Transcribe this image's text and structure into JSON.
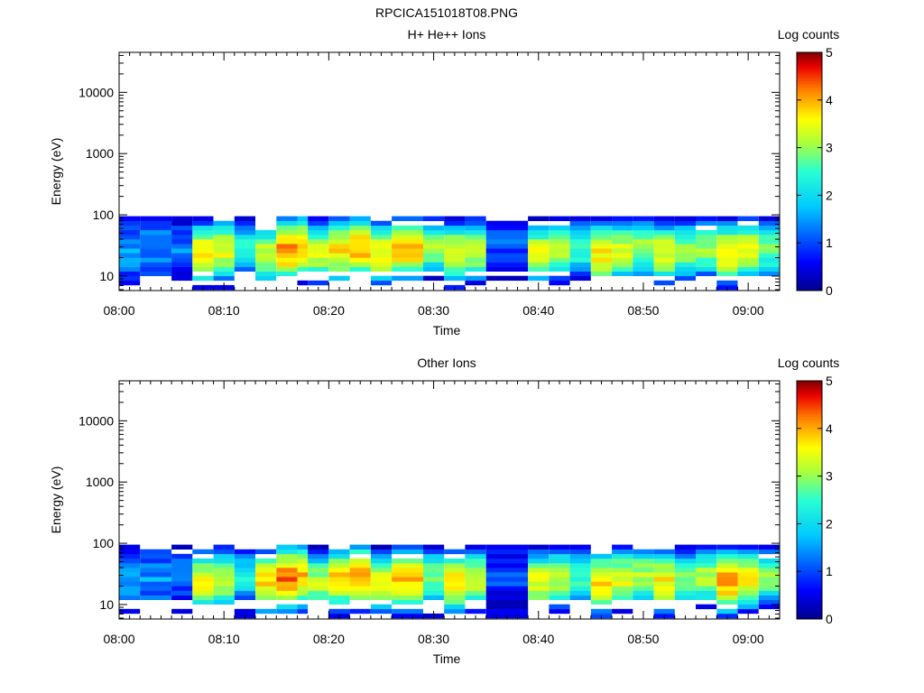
{
  "figure": {
    "title": "RPCICA151018T08.PNG"
  },
  "chart_data": [
    {
      "type": "heatmap",
      "title": "H+ He++ Ions",
      "xlabel": "Time",
      "ylabel": "Energy (eV)",
      "x_range": [
        "08:00",
        "09:03"
      ],
      "x_ticks": [
        "08:00",
        "08:10",
        "08:20",
        "08:30",
        "08:40",
        "08:50",
        "09:00"
      ],
      "y_scale": "log",
      "y_range": [
        5.8,
        45000
      ],
      "y_ticks": [
        "10",
        "100",
        "1000",
        "10000"
      ],
      "colorbar": {
        "label": "Log counts",
        "range": [
          0,
          5
        ],
        "ticks": [
          "0",
          "1",
          "2",
          "3",
          "4",
          "5"
        ],
        "colormap": "rainbow"
      },
      "data_energy_range_ev": [
        6,
        95
      ],
      "time_blocks": [
        {
          "start": "08:00",
          "end": "08:02",
          "level": 1.5
        },
        {
          "start": "08:02",
          "end": "08:05",
          "level": 1.4
        },
        {
          "start": "08:05",
          "end": "08:07",
          "level": 1.3
        },
        {
          "start": "08:07",
          "end": "08:09",
          "level": 3.7
        },
        {
          "start": "08:09",
          "end": "08:11",
          "level": 3.5
        },
        {
          "start": "08:11",
          "end": "08:13",
          "level": 2.4
        },
        {
          "start": "08:13",
          "end": "08:15",
          "level": 3.3
        },
        {
          "start": "08:15",
          "end": "08:17",
          "level": 4.1
        },
        {
          "start": "08:17",
          "end": "08:18",
          "level": 3.9
        },
        {
          "start": "08:18",
          "end": "08:20",
          "level": 3.3
        },
        {
          "start": "08:20",
          "end": "08:22",
          "level": 3.7
        },
        {
          "start": "08:22",
          "end": "08:24",
          "level": 4.0
        },
        {
          "start": "08:24",
          "end": "08:26",
          "level": 3.6
        },
        {
          "start": "08:26",
          "end": "08:29",
          "level": 3.8
        },
        {
          "start": "08:29",
          "end": "08:31",
          "level": 3.0
        },
        {
          "start": "08:31",
          "end": "08:33",
          "level": 3.6
        },
        {
          "start": "08:33",
          "end": "08:35",
          "level": 3.4
        },
        {
          "start": "08:35",
          "end": "08:39",
          "level": 1.1
        },
        {
          "start": "08:39",
          "end": "08:41",
          "level": 3.4
        },
        {
          "start": "08:41",
          "end": "08:43",
          "level": 3.2
        },
        {
          "start": "08:43",
          "end": "08:45",
          "level": 2.7
        },
        {
          "start": "08:45",
          "end": "08:47",
          "level": 3.7
        },
        {
          "start": "08:47",
          "end": "08:49",
          "level": 3.4
        },
        {
          "start": "08:49",
          "end": "08:51",
          "level": 3.1
        },
        {
          "start": "08:51",
          "end": "08:53",
          "level": 3.5
        },
        {
          "start": "08:53",
          "end": "08:55",
          "level": 3.0
        },
        {
          "start": "08:55",
          "end": "08:57",
          "level": 3.1
        },
        {
          "start": "08:57",
          "end": "08:59",
          "level": 3.7
        },
        {
          "start": "08:59",
          "end": "09:01",
          "level": 3.5
        },
        {
          "start": "09:01",
          "end": "09:03",
          "level": 3.0
        }
      ]
    },
    {
      "type": "heatmap",
      "title": "Other Ions",
      "xlabel": "Time",
      "ylabel": "Energy (eV)",
      "x_range": [
        "08:00",
        "09:03"
      ],
      "x_ticks": [
        "08:00",
        "08:10",
        "08:20",
        "08:30",
        "08:40",
        "08:50",
        "09:00"
      ],
      "y_scale": "log",
      "y_range": [
        5.8,
        45000
      ],
      "y_ticks": [
        "10",
        "100",
        "1000",
        "10000"
      ],
      "colorbar": {
        "label": "Log counts",
        "range": [
          0,
          5
        ],
        "ticks": [
          "0",
          "1",
          "2",
          "3",
          "4",
          "5"
        ],
        "colormap": "rainbow"
      },
      "data_energy_range_ev": [
        6,
        95
      ],
      "time_blocks": [
        {
          "start": "08:00",
          "end": "08:02",
          "level": 1.6
        },
        {
          "start": "08:02",
          "end": "08:05",
          "level": 1.5
        },
        {
          "start": "08:05",
          "end": "08:07",
          "level": 1.2
        },
        {
          "start": "08:07",
          "end": "08:09",
          "level": 3.6
        },
        {
          "start": "08:09",
          "end": "08:11",
          "level": 3.3
        },
        {
          "start": "08:11",
          "end": "08:13",
          "level": 2.3
        },
        {
          "start": "08:13",
          "end": "08:15",
          "level": 3.8
        },
        {
          "start": "08:15",
          "end": "08:17",
          "level": 4.3
        },
        {
          "start": "08:17",
          "end": "08:18",
          "level": 3.9
        },
        {
          "start": "08:18",
          "end": "08:20",
          "level": 3.2
        },
        {
          "start": "08:20",
          "end": "08:22",
          "level": 3.8
        },
        {
          "start": "08:22",
          "end": "08:24",
          "level": 4.0
        },
        {
          "start": "08:24",
          "end": "08:26",
          "level": 3.5
        },
        {
          "start": "08:26",
          "end": "08:29",
          "level": 3.9
        },
        {
          "start": "08:29",
          "end": "08:31",
          "level": 2.9
        },
        {
          "start": "08:31",
          "end": "08:33",
          "level": 3.7
        },
        {
          "start": "08:33",
          "end": "08:35",
          "level": 3.3
        },
        {
          "start": "08:35",
          "end": "08:39",
          "level": 1.0
        },
        {
          "start": "08:39",
          "end": "08:41",
          "level": 3.5
        },
        {
          "start": "08:41",
          "end": "08:43",
          "level": 3.3
        },
        {
          "start": "08:43",
          "end": "08:45",
          "level": 2.6
        },
        {
          "start": "08:45",
          "end": "08:47",
          "level": 3.8
        },
        {
          "start": "08:47",
          "end": "08:49",
          "level": 3.5
        },
        {
          "start": "08:49",
          "end": "08:51",
          "level": 3.2
        },
        {
          "start": "08:51",
          "end": "08:53",
          "level": 3.6
        },
        {
          "start": "08:53",
          "end": "08:55",
          "level": 3.0
        },
        {
          "start": "08:55",
          "end": "08:57",
          "level": 3.2
        },
        {
          "start": "08:57",
          "end": "08:59",
          "level": 4.1
        },
        {
          "start": "08:59",
          "end": "09:01",
          "level": 3.6
        },
        {
          "start": "09:01",
          "end": "09:03",
          "level": 3.0
        }
      ]
    }
  ]
}
